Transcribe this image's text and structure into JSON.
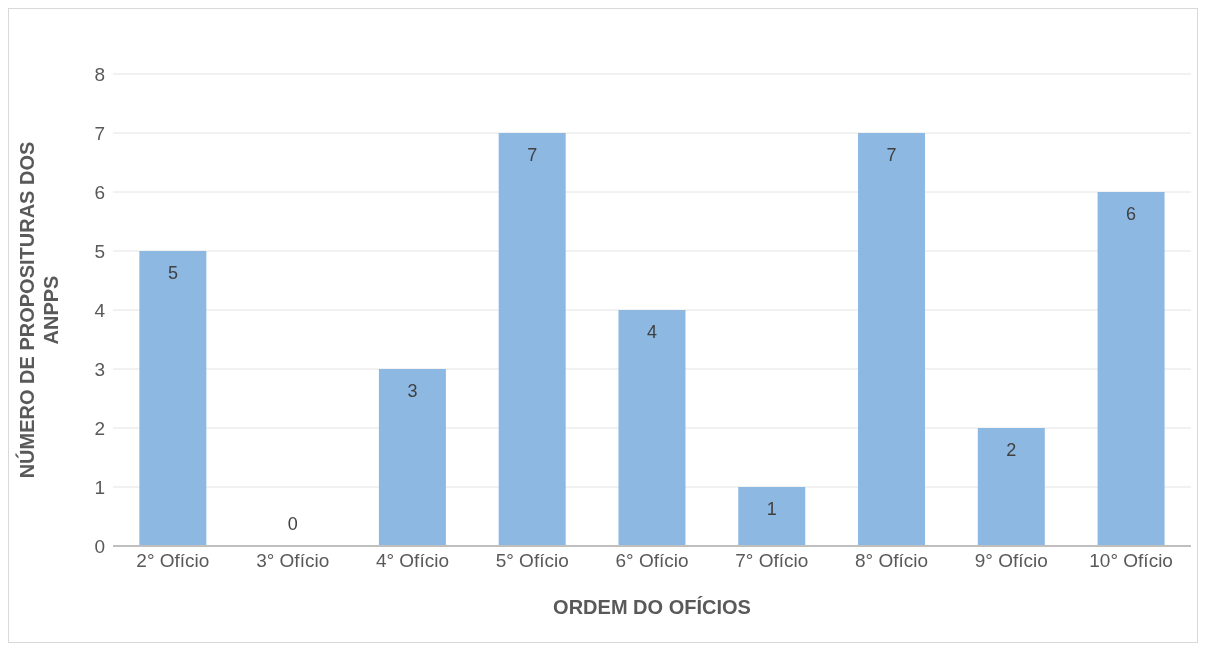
{
  "chart_data": {
    "type": "bar",
    "xlabel": "ORDEM DO OFÍCIOS",
    "ylabel": "NÚMERO DE PROPOSITURAS  DOS ANPPS",
    "categories": [
      "2° Ofício",
      "3° Ofício",
      "4° Ofício",
      "5° Ofício",
      "6° Ofício",
      "7° Ofício",
      "8° Ofício",
      "9° Ofício",
      "10° Ofício"
    ],
    "values": [
      5,
      0,
      3,
      7,
      4,
      1,
      7,
      2,
      6
    ],
    "color": "#8db8e2",
    "ylim": [
      0,
      8
    ],
    "yticks": [
      0,
      1,
      2,
      3,
      4,
      5,
      6,
      7,
      8
    ],
    "grid": "y",
    "data_labels": true
  }
}
